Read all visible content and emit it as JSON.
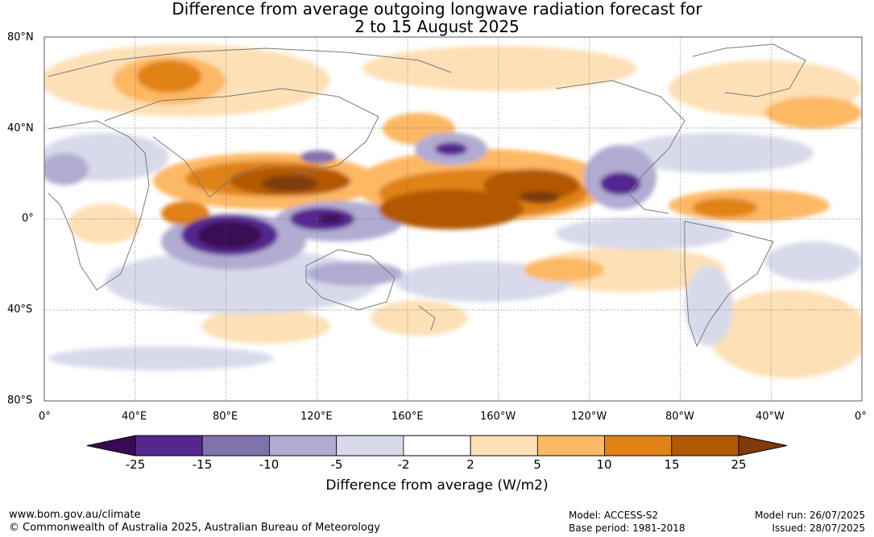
{
  "header": {
    "title_line1": "Difference from average outgoing longwave radiation forecast for",
    "title_line2": "2 to 15 August 2025"
  },
  "map": {
    "projection": "equirectangular, 0° to 360°",
    "gridlines": "dotted",
    "lat_labels": [
      "80°N",
      "40°N",
      "0°",
      "40°S",
      "80°S"
    ],
    "lon_labels": [
      "0°",
      "40°E",
      "80°E",
      "120°E",
      "160°E",
      "160°W",
      "120°W",
      "80°W",
      "40°W",
      "0°"
    ]
  },
  "colorbar": {
    "title": "Difference from average (W/m2)",
    "tick_labels": [
      "-25",
      "-15",
      "-10",
      "-5",
      "-2",
      "2",
      "5",
      "10",
      "15",
      "25"
    ],
    "colors": [
      "#3b0a55",
      "#54278f",
      "#8073ac",
      "#b2abd2",
      "#d8daeb",
      "#ffffff",
      "#fee0b6",
      "#fdb863",
      "#e08214",
      "#b35806",
      "#7f3b08"
    ]
  },
  "footer": {
    "website": "www.bom.gov.au/climate",
    "copyright": "© Commonwealth of Australia 2025, Australian Bureau of Meteorology",
    "model": "Model: ACCESS-S2",
    "base_period": "Base period: 1981-2018",
    "model_run": "Model run: 26/07/2025",
    "issued": "Issued: 28/07/2025"
  }
}
